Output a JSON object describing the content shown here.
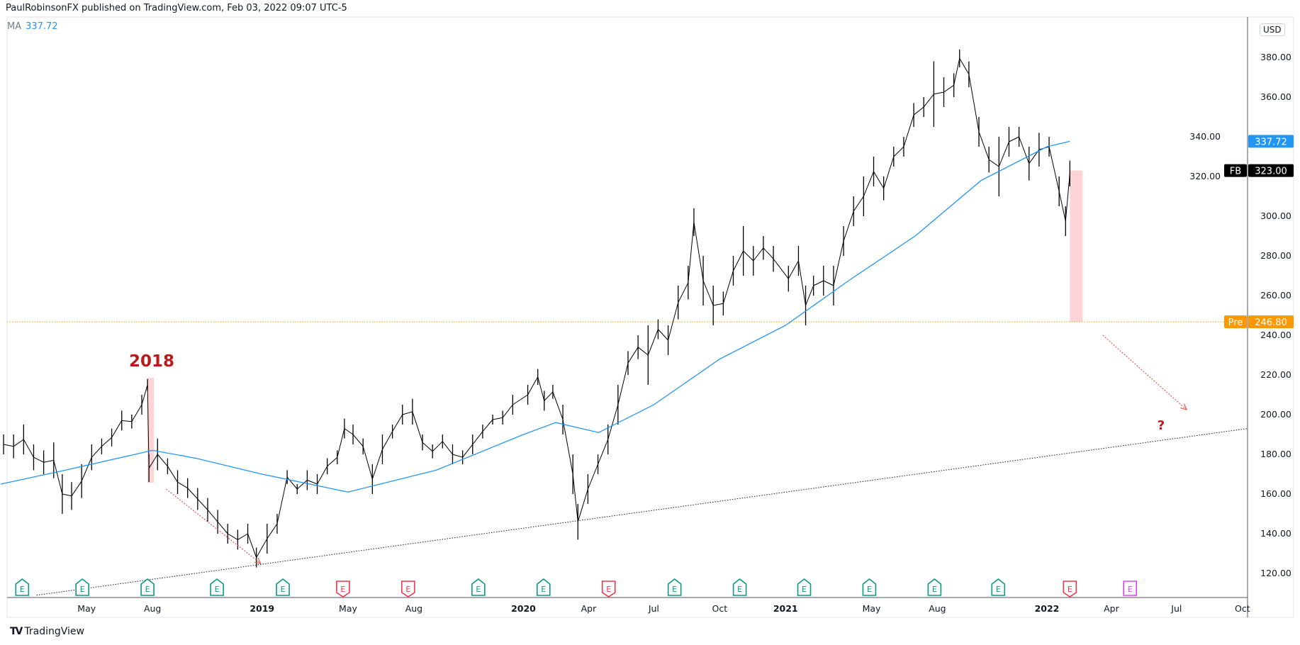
{
  "header": {
    "published": "PaulRobinsonFX published on TradingView.com, Feb 03, 2022 09:07 UTC-5"
  },
  "indicator": {
    "label": "MA",
    "value": "337.72"
  },
  "currency": "USD",
  "footer": {
    "brand": "TradingView"
  },
  "annotations": {
    "year_label": "2018",
    "question": "?"
  },
  "colors": {
    "ma": "#2196f3",
    "bars": "#000000",
    "pre": "#ff9800",
    "highlight": "#ffcdd2",
    "arrow": "#e53935",
    "label": "#b71c1c",
    "earnings_beat": "#089981",
    "earnings_miss": "#f23645",
    "earnings_future": "#e040fb"
  },
  "chart_data": {
    "type": "bar",
    "symbol": "FB",
    "ylim": [
      110,
      390
    ],
    "xlim": [
      "2018-01-01",
      "2022-10-31"
    ],
    "grid": false,
    "y_ticks": [
      120,
      140,
      160,
      180,
      200,
      220,
      240,
      260,
      280,
      300,
      320,
      340,
      360,
      380
    ],
    "x_ticks": [
      {
        "date": "2018-05-01",
        "label": "May",
        "bold": false
      },
      {
        "date": "2018-08-01",
        "label": "Aug",
        "bold": false
      },
      {
        "date": "2019-01-01",
        "label": "2019",
        "bold": true
      },
      {
        "date": "2019-05-01",
        "label": "May",
        "bold": false
      },
      {
        "date": "2019-08-01",
        "label": "Aug",
        "bold": false
      },
      {
        "date": "2020-01-01",
        "label": "2020",
        "bold": true
      },
      {
        "date": "2020-04-01",
        "label": "Apr",
        "bold": false
      },
      {
        "date": "2020-07-01",
        "label": "Jul",
        "bold": false
      },
      {
        "date": "2020-10-01",
        "label": "Oct",
        "bold": false
      },
      {
        "date": "2021-01-01",
        "label": "2021",
        "bold": true
      },
      {
        "date": "2021-05-01",
        "label": "May",
        "bold": false
      },
      {
        "date": "2021-08-01",
        "label": "Aug",
        "bold": false
      },
      {
        "date": "2022-01-01",
        "label": "2022",
        "bold": true
      },
      {
        "date": "2022-04-01",
        "label": "Apr",
        "bold": false
      },
      {
        "date": "2022-07-01",
        "label": "Jul",
        "bold": false
      },
      {
        "date": "2022-10-01",
        "label": "Oct",
        "bold": false
      }
    ],
    "price_bars": [
      [
        "2018-01-05",
        190,
        180
      ],
      [
        "2018-01-19",
        190,
        178
      ],
      [
        "2018-02-02",
        195,
        180
      ],
      [
        "2018-02-16",
        185,
        172
      ],
      [
        "2018-03-02",
        182,
        170
      ],
      [
        "2018-03-16",
        186,
        168
      ],
      [
        "2018-03-28",
        170,
        150
      ],
      [
        "2018-04-10",
        166,
        152
      ],
      [
        "2018-04-24",
        175,
        158
      ],
      [
        "2018-05-08",
        185,
        172
      ],
      [
        "2018-05-22",
        188,
        180
      ],
      [
        "2018-06-05",
        193,
        184
      ],
      [
        "2018-06-19",
        202,
        192
      ],
      [
        "2018-07-03",
        200,
        193
      ],
      [
        "2018-07-17",
        210,
        200
      ],
      [
        "2018-07-25",
        218,
        212
      ],
      [
        "2018-07-27",
        180,
        166
      ],
      [
        "2018-08-08",
        188,
        172
      ],
      [
        "2018-08-22",
        178,
        170
      ],
      [
        "2018-09-05",
        172,
        160
      ],
      [
        "2018-09-19",
        168,
        158
      ],
      [
        "2018-10-03",
        163,
        152
      ],
      [
        "2018-10-17",
        158,
        146
      ],
      [
        "2018-10-31",
        152,
        140
      ],
      [
        "2018-11-14",
        145,
        135
      ],
      [
        "2018-11-28",
        142,
        132
      ],
      [
        "2018-12-12",
        145,
        135
      ],
      [
        "2018-12-24",
        133,
        123
      ],
      [
        "2019-01-08",
        145,
        130
      ],
      [
        "2019-01-22",
        150,
        140
      ],
      [
        "2019-02-05",
        172,
        165
      ],
      [
        "2019-02-19",
        165,
        160
      ],
      [
        "2019-03-05",
        172,
        162
      ],
      [
        "2019-03-19",
        170,
        160
      ],
      [
        "2019-04-02",
        178,
        170
      ],
      [
        "2019-04-16",
        182,
        175
      ],
      [
        "2019-04-26",
        198,
        188
      ],
      [
        "2019-05-08",
        195,
        185
      ],
      [
        "2019-05-22",
        188,
        180
      ],
      [
        "2019-06-04",
        175,
        160
      ],
      [
        "2019-06-18",
        190,
        175
      ],
      [
        "2019-07-02",
        195,
        188
      ],
      [
        "2019-07-16",
        205,
        195
      ],
      [
        "2019-07-30",
        208,
        195
      ],
      [
        "2019-08-13",
        190,
        182
      ],
      [
        "2019-08-27",
        185,
        178
      ],
      [
        "2019-09-10",
        190,
        183
      ],
      [
        "2019-09-24",
        185,
        175
      ],
      [
        "2019-10-08",
        182,
        175
      ],
      [
        "2019-10-22",
        190,
        180
      ],
      [
        "2019-11-05",
        195,
        188
      ],
      [
        "2019-11-19",
        200,
        195
      ],
      [
        "2019-12-03",
        202,
        195
      ],
      [
        "2019-12-17",
        210,
        200
      ],
      [
        "2020-01-07",
        215,
        205
      ],
      [
        "2020-01-21",
        223,
        215
      ],
      [
        "2020-01-30",
        212,
        202
      ],
      [
        "2020-02-11",
        215,
        208
      ],
      [
        "2020-02-25",
        205,
        190
      ],
      [
        "2020-03-10",
        180,
        160
      ],
      [
        "2020-03-17",
        155,
        137
      ],
      [
        "2020-03-31",
        170,
        155
      ],
      [
        "2020-04-14",
        180,
        170
      ],
      [
        "2020-04-28",
        195,
        180
      ],
      [
        "2020-05-12",
        215,
        195
      ],
      [
        "2020-05-26",
        232,
        220
      ],
      [
        "2020-06-09",
        240,
        228
      ],
      [
        "2020-06-23",
        245,
        215
      ],
      [
        "2020-07-07",
        248,
        238
      ],
      [
        "2020-07-21",
        245,
        230
      ],
      [
        "2020-08-04",
        265,
        248
      ],
      [
        "2020-08-18",
        275,
        258
      ],
      [
        "2020-08-26",
        304,
        290
      ],
      [
        "2020-09-08",
        280,
        255
      ],
      [
        "2020-09-22",
        265,
        245
      ],
      [
        "2020-10-06",
        262,
        250
      ],
      [
        "2020-10-20",
        280,
        265
      ],
      [
        "2020-11-03",
        295,
        270
      ],
      [
        "2020-11-17",
        285,
        270
      ],
      [
        "2020-12-01",
        290,
        278
      ],
      [
        "2020-12-15",
        285,
        272
      ],
      [
        "2021-01-05",
        275,
        262
      ],
      [
        "2021-01-19",
        285,
        270
      ],
      [
        "2021-01-29",
        265,
        245
      ],
      [
        "2021-02-09",
        270,
        260
      ],
      [
        "2021-02-23",
        275,
        260
      ],
      [
        "2021-03-09",
        275,
        255
      ],
      [
        "2021-03-23",
        295,
        280
      ],
      [
        "2021-04-06",
        310,
        295
      ],
      [
        "2021-04-20",
        320,
        300
      ],
      [
        "2021-05-04",
        330,
        315
      ],
      [
        "2021-05-18",
        320,
        308
      ],
      [
        "2021-06-01",
        335,
        325
      ],
      [
        "2021-06-15",
        340,
        330
      ],
      [
        "2021-06-29",
        357,
        345
      ],
      [
        "2021-07-13",
        360,
        350
      ],
      [
        "2021-07-27",
        378,
        345
      ],
      [
        "2021-08-10",
        370,
        355
      ],
      [
        "2021-08-24",
        372,
        360
      ],
      [
        "2021-09-01",
        384,
        375
      ],
      [
        "2021-09-14",
        378,
        365
      ],
      [
        "2021-09-28",
        350,
        335
      ],
      [
        "2021-10-12",
        335,
        322
      ],
      [
        "2021-10-26",
        340,
        310
      ],
      [
        "2021-11-09",
        345,
        330
      ],
      [
        "2021-11-23",
        345,
        335
      ],
      [
        "2021-12-07",
        335,
        318
      ],
      [
        "2021-12-21",
        342,
        325
      ],
      [
        "2022-01-04",
        340,
        330
      ],
      [
        "2022-01-18",
        320,
        305
      ],
      [
        "2022-01-27",
        305,
        290
      ],
      [
        "2022-02-02",
        328,
        315
      ]
    ],
    "moving_average": [
      [
        "2018-01-01",
        165
      ],
      [
        "2018-04-01",
        172
      ],
      [
        "2018-08-01",
        182
      ],
      [
        "2018-10-01",
        178
      ],
      [
        "2019-01-01",
        170
      ],
      [
        "2019-05-01",
        161
      ],
      [
        "2019-09-01",
        172
      ],
      [
        "2020-01-01",
        190
      ],
      [
        "2020-02-15",
        196
      ],
      [
        "2020-04-15",
        191
      ],
      [
        "2020-07-01",
        205
      ],
      [
        "2020-10-01",
        228
      ],
      [
        "2021-01-01",
        245
      ],
      [
        "2021-04-01",
        268
      ],
      [
        "2021-07-01",
        290
      ],
      [
        "2021-10-01",
        318
      ],
      [
        "2022-01-01",
        335
      ],
      [
        "2022-02-02",
        337.72
      ]
    ],
    "trendline": [
      [
        "2018-02-20",
        109
      ],
      [
        "2022-10-08",
        193
      ]
    ],
    "horizontal_line": {
      "value": 246.8
    },
    "highlights": [
      {
        "from": "2018-07-25",
        "to": "2018-08-03",
        "top": 218.6,
        "bottom": 165.7
      },
      {
        "from": "2022-02-02",
        "to": "2022-02-20",
        "top": 323,
        "bottom": 246.8
      }
    ],
    "arrows": [
      {
        "from": [
          "2018-08-20",
          162.5
        ],
        "to": [
          "2018-12-30",
          125
        ]
      },
      {
        "from": [
          "2022-03-20",
          240
        ],
        "to": [
          "2022-07-15",
          202.5
        ]
      }
    ],
    "price_labels": [
      {
        "text": "337.72",
        "value": 337.72,
        "color": "#2196f3",
        "tag": ""
      },
      {
        "text": "323.00",
        "value": 323,
        "color": "#000000",
        "tag": "FB"
      },
      {
        "text": "246.80",
        "value": 246.8,
        "color": "#ff9800",
        "tag": "Pre"
      }
    ],
    "earnings": [
      {
        "date": "2018-01-31",
        "result": "beat"
      },
      {
        "date": "2018-04-25",
        "result": "beat"
      },
      {
        "date": "2018-07-25",
        "result": "beat"
      },
      {
        "date": "2018-10-30",
        "result": "beat"
      },
      {
        "date": "2019-01-30",
        "result": "beat"
      },
      {
        "date": "2019-04-24",
        "result": "miss"
      },
      {
        "date": "2019-07-24",
        "result": "miss"
      },
      {
        "date": "2019-10-30",
        "result": "beat"
      },
      {
        "date": "2020-01-29",
        "result": "beat"
      },
      {
        "date": "2020-04-29",
        "result": "miss"
      },
      {
        "date": "2020-07-30",
        "result": "beat"
      },
      {
        "date": "2020-10-29",
        "result": "beat"
      },
      {
        "date": "2021-01-27",
        "result": "beat"
      },
      {
        "date": "2021-04-28",
        "result": "beat"
      },
      {
        "date": "2021-07-28",
        "result": "beat"
      },
      {
        "date": "2021-10-25",
        "result": "beat"
      },
      {
        "date": "2022-02-02",
        "result": "miss"
      },
      {
        "date": "2022-04-27",
        "result": "future"
      }
    ]
  }
}
